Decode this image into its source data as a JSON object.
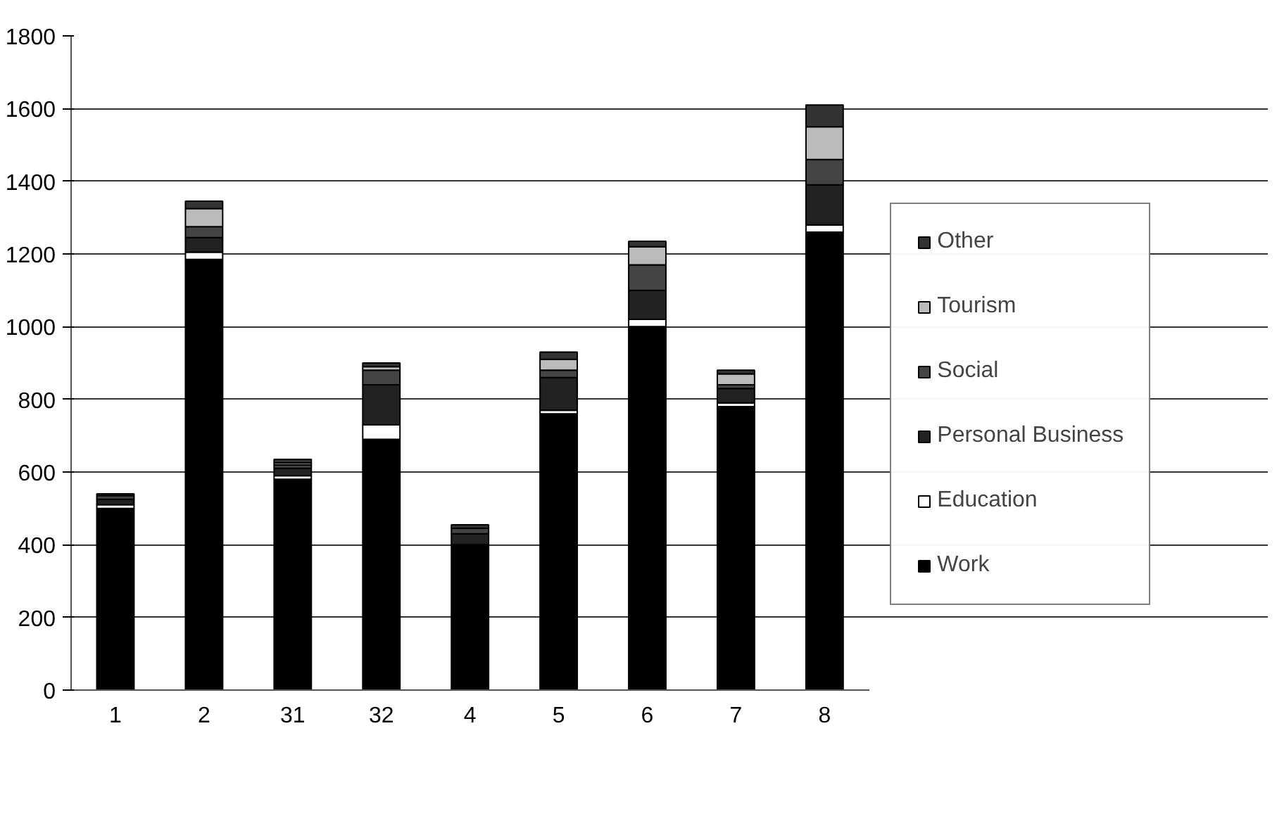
{
  "chart_data": {
    "type": "bar",
    "stacked": true,
    "categories": [
      "1",
      "2",
      "31",
      "32",
      "4",
      "5",
      "6",
      "7",
      "8"
    ],
    "series": [
      {
        "name": "Work",
        "color": "#000000",
        "values": [
          500,
          1185,
          580,
          690,
          400,
          760,
          1000,
          780,
          1260
        ]
      },
      {
        "name": "Education",
        "color": "#ffffff",
        "values": [
          10,
          20,
          10,
          40,
          null,
          10,
          20,
          10,
          20
        ]
      },
      {
        "name": "Personal Business",
        "color": "#222222",
        "values": [
          15,
          40,
          20,
          110,
          30,
          90,
          80,
          40,
          110
        ]
      },
      {
        "name": "Social",
        "color": "#444444",
        "values": [
          10,
          30,
          10,
          40,
          15,
          20,
          70,
          10,
          70
        ]
      },
      {
        "name": "Tourism",
        "color": "#bbbbbb",
        "values": [
          null,
          50,
          5,
          10,
          null,
          30,
          50,
          30,
          90
        ]
      },
      {
        "name": "Other",
        "color": "#333333",
        "values": [
          5,
          20,
          10,
          10,
          10,
          20,
          15,
          10,
          60
        ]
      }
    ],
    "ylim": [
      0,
      1800
    ],
    "yticks": [
      0,
      200,
      400,
      600,
      800,
      1000,
      1200,
      1400,
      1600,
      1800
    ],
    "grid": "y",
    "legend": "right"
  }
}
